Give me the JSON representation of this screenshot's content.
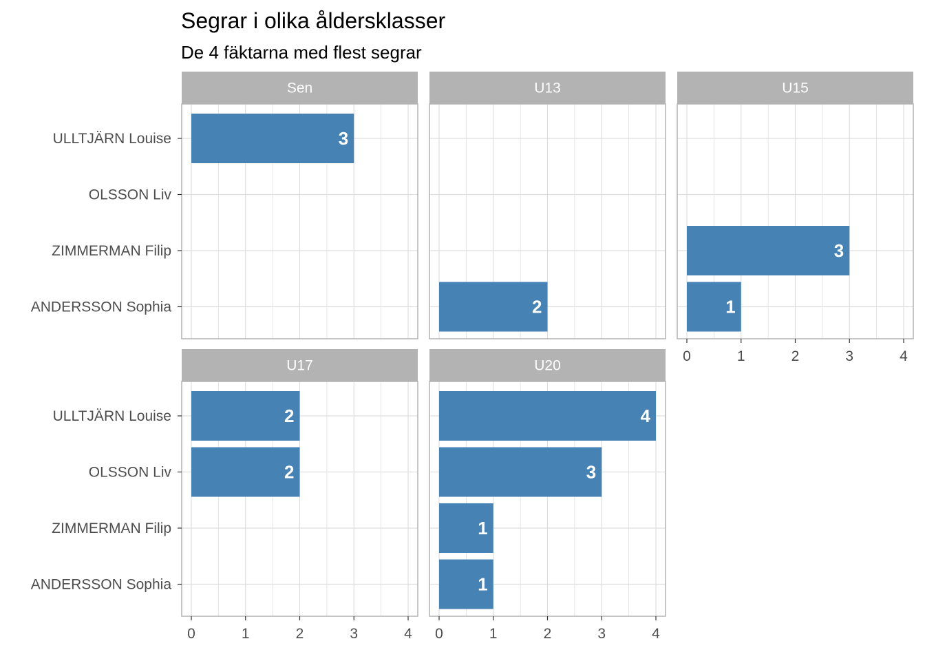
{
  "chart_data": {
    "type": "bar",
    "orientation": "horizontal",
    "title": "Segrar i olika åldersklasser",
    "subtitle": "De 4 fäktarna med flest segrar",
    "categories": [
      "ULLTJÄRN Louise",
      "OLSSON Liv",
      "ZIMMERMAN Filip",
      "ANDERSSON Sophia"
    ],
    "xlim": [
      0,
      4
    ],
    "xticks": [
      0,
      1,
      2,
      3,
      4
    ],
    "grid": true,
    "facets": [
      {
        "name": "Sen",
        "values": [
          3,
          null,
          null,
          null
        ]
      },
      {
        "name": "U13",
        "values": [
          null,
          null,
          null,
          2
        ]
      },
      {
        "name": "U15",
        "values": [
          null,
          null,
          3,
          1
        ]
      },
      {
        "name": "U17",
        "values": [
          2,
          2,
          null,
          null
        ]
      },
      {
        "name": "U20",
        "values": [
          4,
          3,
          1,
          1
        ]
      }
    ]
  },
  "colors": {
    "bar": "#4682b4",
    "strip": "#b3b3b3",
    "grid": "#dedede",
    "panel_border": "#b3b3b3",
    "tick_text": "#4d4d4d"
  }
}
